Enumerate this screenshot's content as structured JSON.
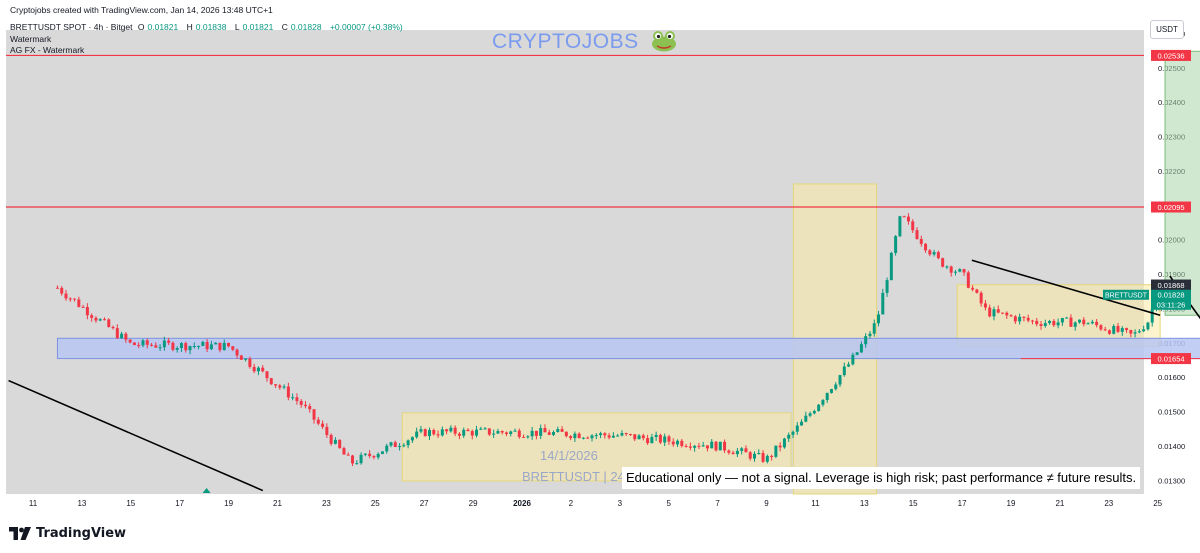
{
  "header": {
    "created": "Cryptojobs created with TradingView.com, Jan 14, 2026 13:48 UTC+1",
    "symbol": "BRETTUSDT SPOT · 4h · Bitget",
    "ohlc_o_label": "O",
    "ohlc_o": "0.01821",
    "ohlc_h_label": "H",
    "ohlc_h": "0.01838",
    "ohlc_l_label": "L",
    "ohlc_l": "0.01821",
    "ohlc_c_label": "C",
    "ohlc_c": "0.01828",
    "change": "+0.00007 (+0.38%)",
    "indicator1": "Watermark",
    "indicator2": "AG FX - Watermark"
  },
  "currency": "USDT",
  "watermark": {
    "text": "CRYPTOJOBS",
    "icon": "frog-icon"
  },
  "disclaimer": "Educational only — not a signal. Leverage is high risk; past performance ≠ future results.",
  "ghost_watermark": {
    "date": "14/1/2026",
    "symbol": "BRETTUSDT | 24"
  },
  "footer": {
    "brand": "TradingView"
  },
  "colors": {
    "up": "#089981",
    "down": "#f23645",
    "resistance": "#f23645",
    "zone_yellow": "#fbeba4",
    "zone_blue": "#b7c6f2",
    "target": "#a9d6a9"
  },
  "chart_data": {
    "type": "candlestick",
    "timeframe": "4h",
    "x_ticks": [
      "11",
      "13",
      "15",
      "17",
      "19",
      "21",
      "23",
      "25",
      "27",
      "29",
      "2026",
      "2",
      "3",
      "5",
      "7",
      "9",
      "11",
      "13",
      "15",
      "17",
      "19",
      "21",
      "23",
      "25"
    ],
    "y_ticks": [
      "0.02600",
      "0.02500",
      "0.02400",
      "0.02300",
      "0.02200",
      "0.02100",
      "0.02000",
      "0.01900",
      "0.01800",
      "0.01700",
      "0.01600",
      "0.01500",
      "0.01400",
      "0.01300"
    ],
    "ylim": [
      0.0126,
      0.0261
    ],
    "price_labels": [
      {
        "value": 0.02536,
        "text": "0.02536",
        "style": "red"
      },
      {
        "value": 0.02095,
        "text": "0.02095",
        "style": "red"
      },
      {
        "value": 0.01868,
        "text": "0.01868",
        "style": "dark"
      },
      {
        "value": 0.01828,
        "text": "BRETTUSDT",
        "text2": "0.01828",
        "text3": "03:11:26",
        "style": "green"
      },
      {
        "value": 0.01654,
        "text": "0.01654",
        "style": "red"
      }
    ],
    "horizontal_lines": [
      0.02536,
      0.02095
    ],
    "support_line": {
      "value": 0.01654,
      "from_day": 12.2,
      "to_day": 25.8
    },
    "zones": [
      {
        "type": "yellow",
        "x0": 15.1,
        "x1": 31.0,
        "y0": 0.01298,
        "y1": 0.01496
      },
      {
        "type": "yellow",
        "x0": 31.1,
        "x1": 34.5,
        "y0": 0.0126,
        "y1": 0.02162
      },
      {
        "type": "yellow",
        "x0": 37.8,
        "x1": 46.1,
        "y0": 0.01689,
        "y1": 0.01869
      },
      {
        "type": "blue",
        "x0": 1.0,
        "x1": 48.0,
        "y0": 0.01654,
        "y1": 0.01713
      },
      {
        "type": "green",
        "x0": 46.3,
        "x1": 57.2,
        "y0": 0.0178,
        "y1": 0.02548
      }
    ],
    "trendlines": [
      {
        "x0": 1.0,
        "y0": 0.0159,
        "x1": 13.4,
        "y1": 0.0127
      },
      {
        "x0": 38.4,
        "y0": 0.0194,
        "x1": 46.1,
        "y0b": 0.0178,
        "y1": 0.0178
      }
    ],
    "projection_path": [
      [
        46.5,
        0.01894
      ],
      [
        48.0,
        0.01746
      ],
      [
        49.0,
        0.0194
      ],
      [
        51.0,
        0.0182
      ],
      [
        52.5,
        0.02252
      ],
      [
        54.7,
        0.02093
      ],
      [
        56.2,
        0.02495
      ]
    ],
    "projection_arrow_tip": [
      56.2,
      0.02495
    ],
    "anchors": [
      [
        1.0,
        0.0186
      ],
      [
        4.0,
        0.01695
      ],
      [
        8.0,
        0.0169
      ],
      [
        11.0,
        0.0152
      ],
      [
        13.0,
        0.0135
      ],
      [
        16.0,
        0.0144
      ],
      [
        20.0,
        0.0144
      ],
      [
        24.0,
        0.0143
      ],
      [
        28.0,
        0.014
      ],
      [
        30.0,
        0.0136
      ],
      [
        31.5,
        0.0147
      ],
      [
        33.5,
        0.0165
      ],
      [
        34.5,
        0.0176
      ],
      [
        35.5,
        0.0207
      ],
      [
        37.0,
        0.0194
      ],
      [
        38.0,
        0.019
      ],
      [
        39.0,
        0.0179
      ],
      [
        41.0,
        0.0176
      ],
      [
        43.0,
        0.0176
      ],
      [
        44.0,
        0.0174
      ],
      [
        45.0,
        0.0172
      ],
      [
        45.7,
        0.0177
      ],
      [
        46.0,
        0.0188
      ],
      [
        46.3,
        0.01828
      ]
    ],
    "candle_count": 260,
    "last_price": 0.01828
  }
}
